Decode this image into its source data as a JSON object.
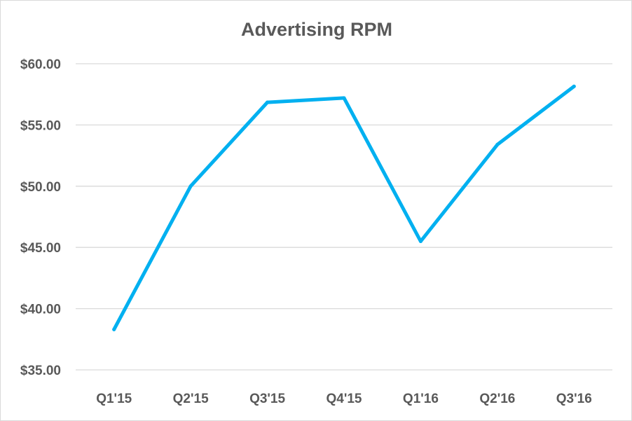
{
  "chart_data": {
    "type": "line",
    "title": "Advertising RPM",
    "categories": [
      "Q1'15",
      "Q2'15",
      "Q3'15",
      "Q4'15",
      "Q1'16",
      "Q2'16",
      "Q3'16"
    ],
    "series": [
      {
        "values": [
          38.3,
          50.0,
          56.85,
          57.2,
          45.5,
          53.4,
          58.15
        ],
        "color": "#00B0F0"
      }
    ],
    "ylim": [
      35,
      60
    ],
    "y_ticks": [
      60,
      55,
      50,
      45,
      40,
      35
    ],
    "y_tick_labels": [
      "$60.00",
      "$55.00",
      "$50.00",
      "$45.00",
      "$40.00",
      "$35.00"
    ],
    "grid": true,
    "grid_color": "#d9d9d9",
    "text_color": "#595959",
    "legend": false
  }
}
